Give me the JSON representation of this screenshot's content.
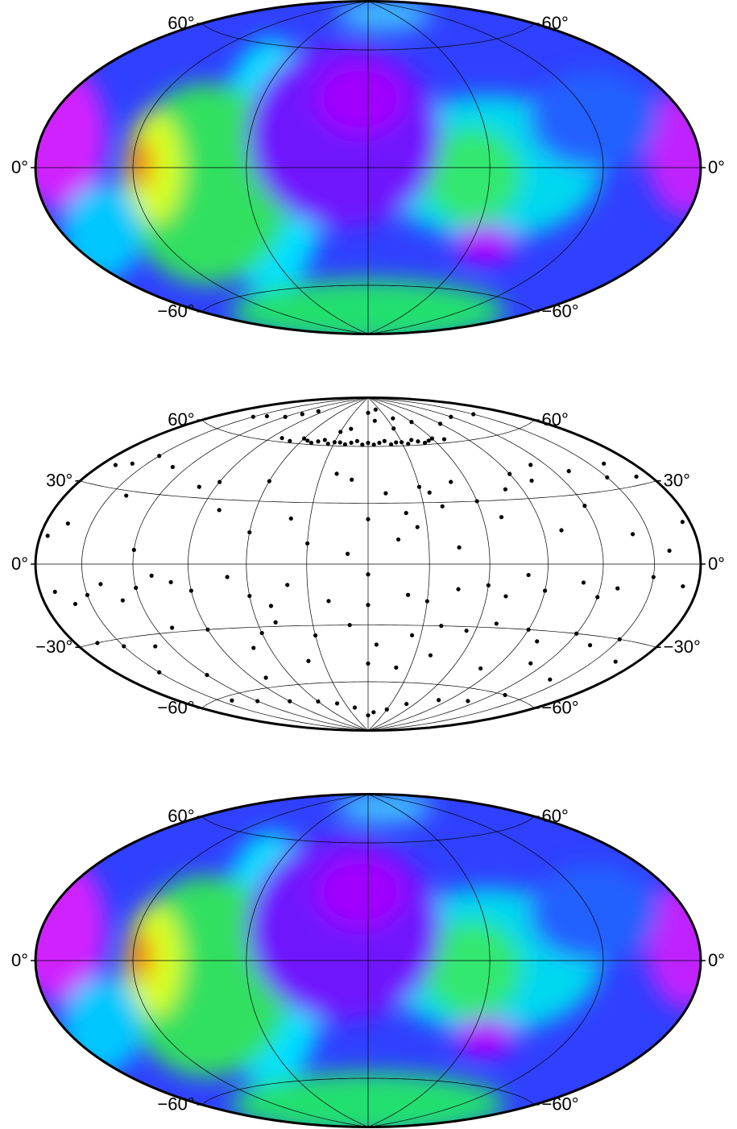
{
  "chart_data": [
    {
      "type": "map",
      "projection": "hammer",
      "xlim": [
        -180,
        180
      ],
      "ylim": [
        -90,
        90
      ],
      "xticks": [
        -120,
        -60,
        0,
        60,
        120
      ],
      "yticks": [
        {
          "value": 60,
          "label": "60°"
        },
        {
          "value": 0,
          "label": "0°"
        },
        {
          "value": -60,
          "label": "−60°"
        }
      ]
    },
    {
      "type": "scatter",
      "projection": "hammer",
      "xlim": [
        -180,
        180
      ],
      "ylim": [
        -90,
        90
      ],
      "color": "#000000",
      "xticks": [
        -150,
        -120,
        -90,
        -60,
        -30,
        0,
        30,
        60,
        90,
        120,
        150
      ],
      "yticks": [
        {
          "value": 60,
          "label": "60°"
        },
        {
          "value": 30,
          "label": "30°"
        },
        {
          "value": 0,
          "label": "0°"
        },
        {
          "value": -30,
          "label": "−30°"
        },
        {
          "value": -60,
          "label": "−60°"
        }
      ],
      "x": [
        -80,
        -70,
        -60,
        -55,
        -50,
        -45,
        -40,
        -35,
        -30,
        -25,
        -20,
        -15,
        -10,
        -5,
        0,
        5,
        10,
        15,
        20,
        25,
        30,
        35,
        40,
        45,
        50,
        55,
        60,
        70,
        -120,
        -110,
        -100,
        0,
        20,
        40,
        60,
        90,
        120,
        150,
        -140,
        -150,
        10,
        30,
        -20,
        -30,
        -170,
        -160,
        -150,
        -130,
        -100,
        -90,
        -60,
        -20,
        -10,
        10,
        30,
        35,
        50,
        60,
        80,
        90,
        100,
        110,
        130,
        150,
        160,
        170,
        -140,
        -80,
        -40,
        0,
        20,
        40,
        70,
        120,
        -175,
        -165,
        -120,
        -60,
        -30,
        -10,
        15,
        25,
        45,
        100,
        140,
        175,
        160,
        -170,
        -160,
        -150,
        -140,
        -130,
        -120,
        -110,
        -100,
        -90,
        -70,
        -60,
        -50,
        -40,
        -20,
        0,
        0,
        20,
        30,
        45,
        60,
        70,
        80,
        90,
        110,
        120,
        130,
        150,
        170,
        -165,
        -150,
        -130,
        -110,
        -90,
        -70,
        -60,
        -50,
        -30,
        -10,
        5,
        25,
        40,
        55,
        70,
        90,
        100,
        120,
        135,
        150,
        165,
        -150,
        -120,
        -80,
        -40,
        0,
        20,
        40,
        80,
        110,
        140,
        -120,
        -90,
        -60,
        -40,
        -20,
        0,
        10,
        30,
        50,
        80,
        110,
        -140,
        130
      ],
      "y": [
        62,
        61,
        63,
        62,
        61,
        62,
        63,
        61,
        62,
        62,
        61,
        62,
        63,
        61,
        62,
        61,
        62,
        63,
        61,
        62,
        62,
        61,
        63,
        62,
        61,
        62,
        63,
        62,
        72,
        75,
        78,
        80,
        82,
        76,
        73,
        70,
        72,
        70,
        70,
        68,
        75,
        70,
        70,
        68,
        38,
        40,
        45,
        42,
        35,
        38,
        40,
        45,
        42,
        35,
        38,
        35,
        40,
        30,
        35,
        42,
        38,
        45,
        40,
        35,
        40,
        33,
        28,
        25,
        22,
        22,
        25,
        28,
        22,
        25,
        10,
        15,
        6,
        15,
        10,
        5,
        12,
        18,
        8,
        15,
        12,
        15,
        5,
        -10,
        -15,
        -12,
        -8,
        -15,
        -10,
        -5,
        -8,
        -12,
        -6,
        -15,
        -20,
        -10,
        -18,
        -5,
        -20,
        -15,
        -18,
        -12,
        -10,
        -15,
        -5,
        -12,
        -8,
        -14,
        -10,
        -5,
        -8,
        -30,
        -33,
        -35,
        -28,
        -30,
        -40,
        -33,
        -28,
        -35,
        -30,
        -40,
        -35,
        -30,
        -32,
        -28,
        -30,
        -35,
        -30,
        -34,
        -30,
        -38,
        -45,
        -50,
        -55,
        -48,
        -50,
        -52,
        -45,
        -50,
        -45,
        -50,
        -65,
        -68,
        -70,
        -72,
        -75,
        -80,
        -78,
        -76,
        -72,
        -68,
        -66,
        -62,
        -60
      ]
    },
    {
      "type": "map",
      "projection": "hammer",
      "xlim": [
        -180,
        180
      ],
      "ylim": [
        -90,
        90
      ],
      "xticks": [
        -120,
        -60,
        0,
        60,
        120
      ],
      "yticks": [
        {
          "value": 60,
          "label": "60°"
        },
        {
          "value": 0,
          "label": "0°"
        },
        {
          "value": -60,
          "label": "−60°"
        }
      ]
    }
  ]
}
